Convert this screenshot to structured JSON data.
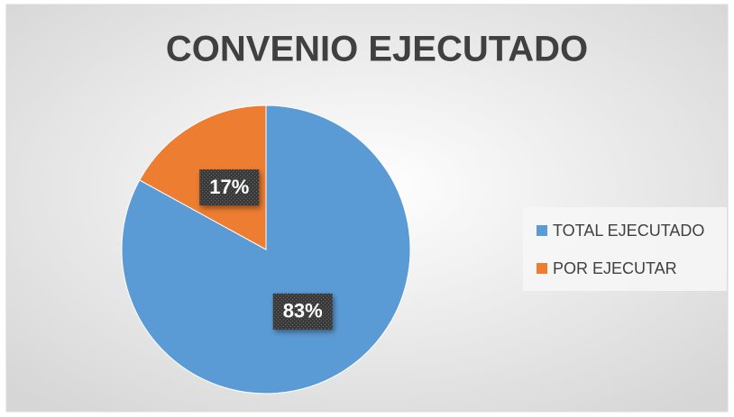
{
  "chart_data": {
    "type": "pie",
    "title": "CONVENIO EJECUTADO",
    "categories": [
      "TOTAL EJECUTADO",
      "POR EJECUTAR"
    ],
    "values": [
      83,
      17
    ],
    "value_labels": [
      "83%",
      "17%"
    ],
    "colors": [
      "#5b9bd5",
      "#ed7d31"
    ],
    "legend": "right"
  }
}
